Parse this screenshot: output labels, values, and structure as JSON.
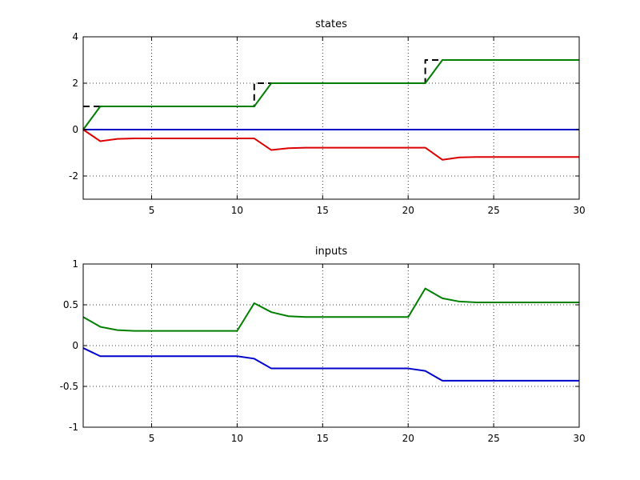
{
  "chart_data": [
    {
      "type": "line",
      "title": "states",
      "xlabel": "",
      "ylabel": "",
      "xlim": [
        1,
        30
      ],
      "ylim": [
        -3,
        4
      ],
      "xticks": [
        5,
        10,
        15,
        20,
        25,
        30
      ],
      "yticks": [
        -2,
        0,
        2,
        4
      ],
      "grid": true,
      "series": [
        {
          "color": "#000000",
          "dash": true,
          "x": [
            1,
            2,
            11,
            11,
            21,
            21,
            30
          ],
          "y": [
            1,
            1,
            1,
            2,
            2,
            3,
            3
          ]
        },
        {
          "color": "#007f00",
          "dash": false,
          "x": [
            1,
            2,
            11,
            12,
            21,
            22,
            30
          ],
          "y": [
            0,
            1,
            1,
            2,
            2,
            3,
            3
          ]
        },
        {
          "color": "#0000cc",
          "dash": false,
          "x": [
            1,
            30
          ],
          "y": [
            0,
            0
          ]
        },
        {
          "color": "#dd0000",
          "dash": false,
          "x": [
            1,
            2,
            3,
            4,
            5,
            10,
            11,
            12,
            13,
            14,
            15,
            20,
            21,
            22,
            23,
            24,
            25,
            30
          ],
          "y": [
            0,
            -0.5,
            -0.4,
            -0.38,
            -0.38,
            -0.38,
            -0.38,
            -0.88,
            -0.8,
            -0.78,
            -0.78,
            -0.78,
            -0.78,
            -1.3,
            -1.2,
            -1.18,
            -1.18,
            -1.18
          ]
        }
      ]
    },
    {
      "type": "line",
      "title": "inputs",
      "xlabel": "",
      "ylabel": "",
      "xlim": [
        1,
        30
      ],
      "ylim": [
        -1,
        1
      ],
      "xticks": [
        5,
        10,
        15,
        20,
        25,
        30
      ],
      "yticks": [
        -1,
        -0.5,
        0,
        0.5,
        1
      ],
      "grid": true,
      "series": [
        {
          "color": "#007f00",
          "dash": false,
          "x": [
            1,
            2,
            3,
            4,
            5,
            10,
            11,
            12,
            13,
            14,
            15,
            20,
            21,
            22,
            23,
            24,
            25,
            30
          ],
          "y": [
            0.35,
            0.23,
            0.19,
            0.18,
            0.18,
            0.18,
            0.52,
            0.41,
            0.36,
            0.35,
            0.35,
            0.35,
            0.7,
            0.58,
            0.54,
            0.53,
            0.53,
            0.53
          ]
        },
        {
          "color": "#0000cc",
          "dash": false,
          "x": [
            1,
            2,
            3,
            5,
            10,
            11,
            12,
            13,
            15,
            20,
            21,
            22,
            23,
            25,
            30
          ],
          "y": [
            -0.03,
            -0.13,
            -0.13,
            -0.13,
            -0.13,
            -0.16,
            -0.28,
            -0.28,
            -0.28,
            -0.28,
            -0.31,
            -0.43,
            -0.43,
            -0.43,
            -0.43
          ]
        }
      ]
    }
  ]
}
